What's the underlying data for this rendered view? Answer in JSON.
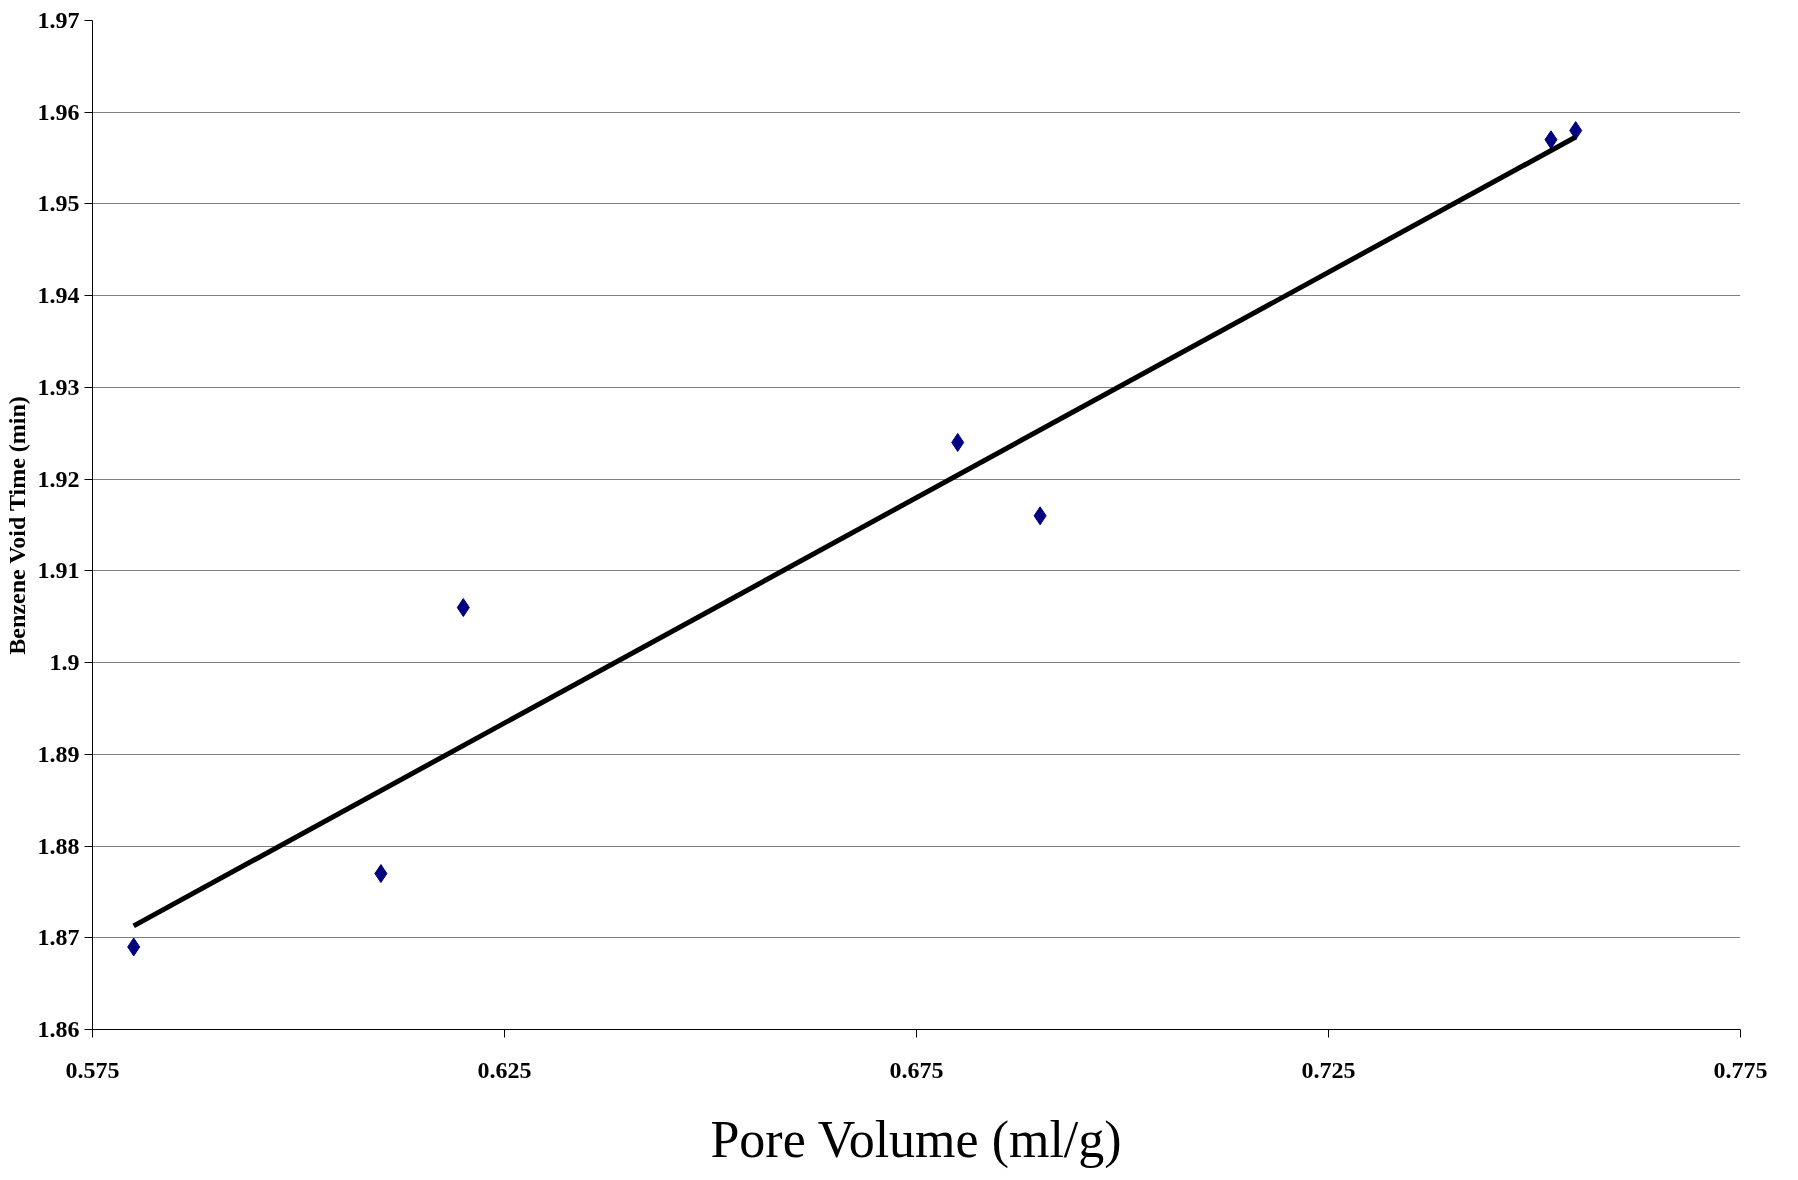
{
  "chart_data": {
    "type": "scatter",
    "xlabel": "Pore Volume (ml/g)",
    "ylabel": "Benzene Void Time (min)",
    "xlim": [
      0.575,
      0.775
    ],
    "xticks": [
      0.575,
      0.625,
      0.675,
      0.725,
      0.775
    ],
    "ylim": [
      1.86,
      1.97
    ],
    "yticks": [
      1.86,
      1.87,
      1.88,
      1.89,
      1.9,
      1.91,
      1.92,
      1.93,
      1.94,
      1.95,
      1.96,
      1.97
    ],
    "grid": "y",
    "series": [
      {
        "marker": "diamond",
        "color": "#000080",
        "x": [
          0.58,
          0.61,
          0.62,
          0.68,
          0.69,
          0.752,
          0.755
        ],
        "values": [
          1.869,
          1.877,
          1.906,
          1.924,
          1.916,
          1.957,
          1.958
        ]
      },
      {
        "type": "line",
        "line_style": "solid",
        "color": "#000000",
        "x": [
          0.58,
          0.755
        ],
        "values": [
          1.8713,
          1.9573
        ]
      }
    ]
  }
}
